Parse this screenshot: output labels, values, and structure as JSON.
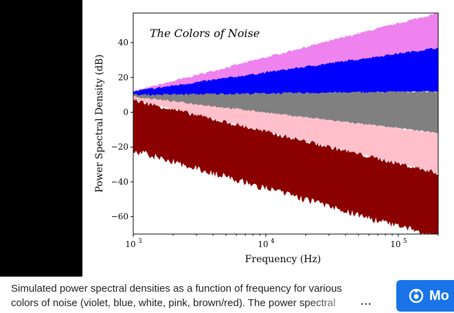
{
  "caption": {
    "line1": "Simulated power spectral densities as a function of frequency for various",
    "line2": "colors of noise (violet, blue, white, pink, brown/red). The power spectral",
    "more_dots": "..."
  },
  "more_button": {
    "label": "Mo",
    "icon": "lens-icon",
    "color": "#1a73e8"
  },
  "chart_data": {
    "type": "area",
    "title": "The Colors of Noise",
    "xlabel": "Frequency (Hz)",
    "ylabel": "Power Spectral Density (dB)",
    "xscale": "log",
    "xlim": [
      1000,
      200000
    ],
    "ylim": [
      -70,
      57
    ],
    "xticks": [
      "10^3",
      "10^4",
      "10^5"
    ],
    "yticks": [
      "40",
      "20",
      "0",
      "−20",
      "−40",
      "−60"
    ],
    "grid": false,
    "legend": "none",
    "series": [
      {
        "color": "#ee82ee",
        "upper": [
          [
            1000,
            12
          ],
          [
            200000,
            57
          ]
        ],
        "lower": [
          [
            1000,
            8
          ],
          [
            200000,
            32
          ]
        ]
      },
      {
        "color": "#0000ff",
        "upper": [
          [
            1000,
            12
          ],
          [
            200000,
            37
          ]
        ],
        "lower": [
          [
            1000,
            8
          ],
          [
            200000,
            12
          ]
        ]
      },
      {
        "color": "#808080",
        "upper": [
          [
            1000,
            10
          ],
          [
            200000,
            12
          ]
        ],
        "lower": [
          [
            1000,
            8
          ],
          [
            200000,
            -12
          ]
        ]
      },
      {
        "color": "#ffc0cb",
        "upper": [
          [
            1000,
            9
          ],
          [
            200000,
            -12
          ]
        ],
        "lower": [
          [
            1000,
            7
          ],
          [
            200000,
            -35
          ]
        ]
      },
      {
        "color": "#8b0000",
        "upper": [
          [
            1000,
            7
          ],
          [
            200000,
            -35
          ]
        ],
        "lower": [
          [
            1000,
            -20
          ],
          [
            200000,
            -70
          ]
        ]
      }
    ]
  }
}
